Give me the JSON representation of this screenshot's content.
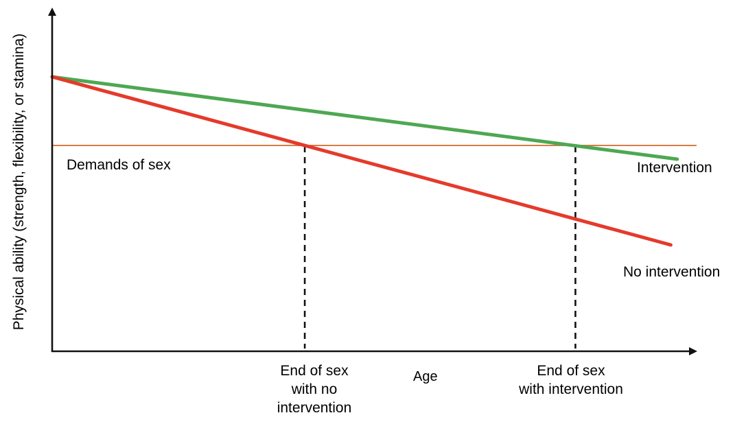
{
  "page": {
    "background": "#ffffff",
    "text_color": "#000000"
  },
  "chart_data": {
    "type": "line",
    "title": "",
    "xlabel": "Age",
    "ylabel": "Physical ability (strength, flexibility, or stamina)",
    "xlim": [
      0,
      100
    ],
    "ylim": [
      0,
      100
    ],
    "grid": false,
    "ticks_visible": false,
    "legend_position": "inline-right-of-lines",
    "axis_color": "#111111",
    "series": [
      {
        "name": "Intervention",
        "color": "#4da852",
        "x": [
          0,
          97
        ],
        "y": [
          80,
          56
        ]
      },
      {
        "name": "No intervention",
        "color": "#e53a2b",
        "x": [
          0,
          96
        ],
        "y": [
          80,
          31
        ]
      }
    ],
    "threshold": {
      "label": "Demands of sex",
      "value": 60,
      "color": "#d97b45",
      "x_start": 0,
      "x_end": 100
    },
    "markers": [
      {
        "label": "End of sex\nwith no\nintervention",
        "x": 39.2
      },
      {
        "label": "End of sex\nwith intervention",
        "x": 81.2
      }
    ]
  }
}
